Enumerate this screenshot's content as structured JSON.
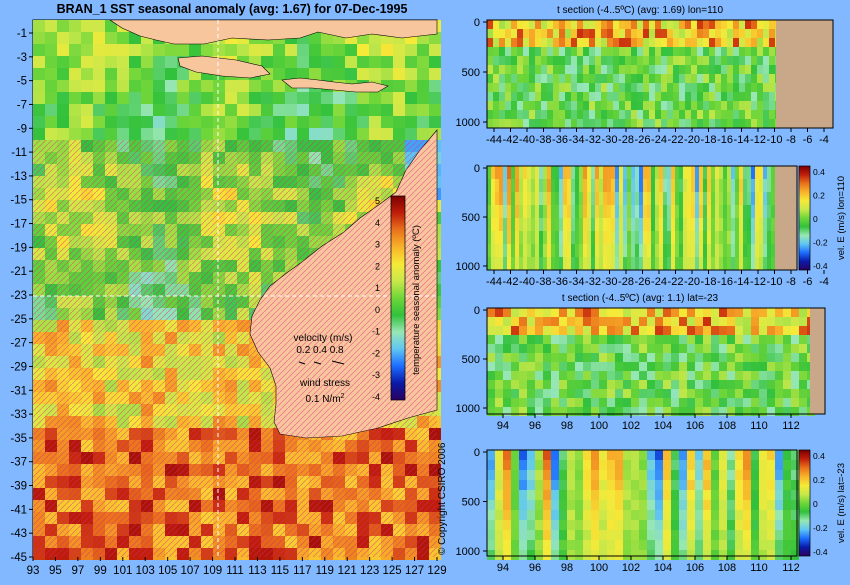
{
  "colors": {
    "background": "#81b8ff",
    "land": "#f8c69c",
    "section_mask": "#c8a888",
    "ramp": [
      "#2b0061",
      "#0a1aa8",
      "#1d6dff",
      "#5fc6f2",
      "#98e7b4",
      "#32c13c",
      "#6fd63a",
      "#c8e84a",
      "#f6ea38",
      "#f8b32a",
      "#e9721b",
      "#c01e0a",
      "#7a0000"
    ]
  },
  "map": {
    "title": "BRAN_1  SST seasonal anomaly  (avg: 1.67) for 07-Dec-1995",
    "x_ticks": [
      "93",
      "95",
      "97",
      "99",
      "101",
      "103",
      "105",
      "107",
      "109",
      "111",
      "113",
      "115",
      "117",
      "119",
      "121",
      "123",
      "125",
      "127",
      "129"
    ],
    "y_ticks": [
      "-1",
      "-3",
      "-5",
      "-7",
      "-9",
      "-11",
      "-13",
      "-15",
      "-17",
      "-19",
      "-21",
      "-23",
      "-25",
      "-27",
      "-29",
      "-31",
      "-33",
      "-35",
      "-37",
      "-39",
      "-41",
      "-43",
      "-45"
    ],
    "colorbar": {
      "label": "temperature seasonal anomaly (ºC)",
      "ticks": [
        "5",
        "4",
        "3",
        "2",
        "1",
        "0",
        "-1",
        "-2",
        "-3",
        "-4"
      ]
    },
    "legend": {
      "velocity_title": "velocity (m/s)",
      "velocity_values": "0.2 0.4 0.8",
      "wind_title": "wind stress",
      "wind_value": "0.1 N/m",
      "wind_unit_sup": "2"
    },
    "copyright": "© Copyright CSIRO 2006"
  },
  "sections": {
    "lon_x_ticks": [
      "-44",
      "-42",
      "-40",
      "-38",
      "-36",
      "-34",
      "-32",
      "-30",
      "-28",
      "-26",
      "-24",
      "-22",
      "-20",
      "-18",
      "-16",
      "-14",
      "-12",
      "-10",
      "-8",
      "-6",
      "-4"
    ],
    "lat_x_ticks": [
      "94",
      "96",
      "98",
      "100",
      "102",
      "104",
      "106",
      "108",
      "110",
      "112"
    ],
    "depth_ticks": [
      "0",
      "500",
      "1000"
    ],
    "panel1_title": "t section (-4..5ºC) (avg: 1.69) lon=110",
    "panel3_title": "t section (-4..5ºC) (avg: 1.1) lat=-23",
    "vel_cbar_ticks": [
      "0.4",
      "0.2",
      "0",
      "-0.2",
      "-0.4"
    ],
    "panel2_cbar_label": "vel. E (m/s) lon=110",
    "panel4_cbar_label": "vel. E (m/s) lat=-23"
  },
  "chart_data": [
    {
      "type": "heatmap",
      "title": "BRAN_1  SST seasonal anomaly  (avg: 1.67) for 07-Dec-1995",
      "xlabel": "",
      "ylabel": "",
      "xlim": [
        93,
        130
      ],
      "ylim": [
        -45,
        0
      ],
      "colorbar_range": [
        -4,
        5
      ],
      "average": 1.67,
      "colorbar_label": "temperature seasonal anomaly (ºC)"
    },
    {
      "type": "heatmap",
      "title": "t section (-4..5ºC) (avg: 1.69) lon=110",
      "xlim": [
        -45,
        -3
      ],
      "ylim": [
        1050,
        0
      ],
      "colorbar_range": [
        -4,
        5
      ],
      "average": 1.69
    },
    {
      "type": "heatmap",
      "title": "",
      "colorbar_label": "vel. E (m/s) lon=110",
      "xlim": [
        -45,
        -3
      ],
      "ylim": [
        1050,
        0
      ],
      "colorbar_range": [
        -0.4,
        0.4
      ]
    },
    {
      "type": "heatmap",
      "title": "t section (-4..5ºC) (avg: 1.1) lat=-23",
      "xlim": [
        93,
        114
      ],
      "ylim": [
        1050,
        0
      ],
      "colorbar_range": [
        -4,
        5
      ],
      "average": 1.1
    },
    {
      "type": "heatmap",
      "title": "",
      "colorbar_label": "vel. E (m/s) lat=-23",
      "xlim": [
        93,
        114
      ],
      "ylim": [
        1050,
        0
      ],
      "colorbar_range": [
        -0.4,
        0.4
      ]
    }
  ]
}
